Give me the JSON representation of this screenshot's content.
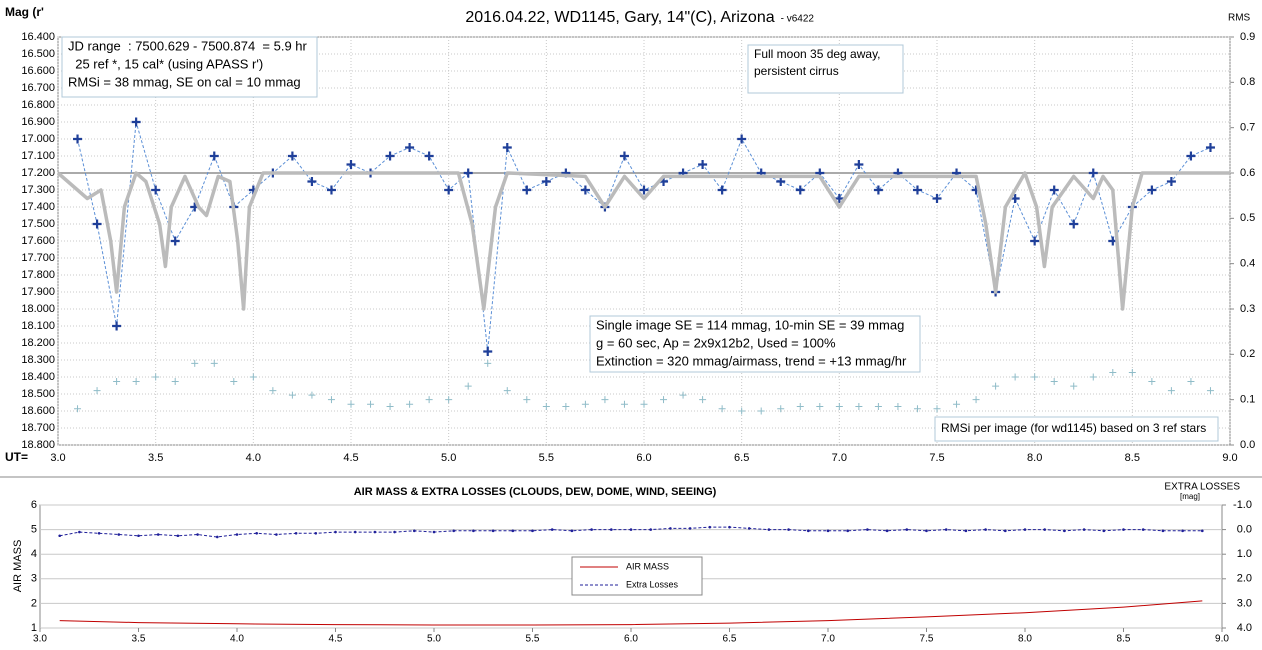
{
  "chart_data": [
    {
      "type": "line",
      "title": "2016.04.22,  WD1145, Gary, 14\"(C), Arizona",
      "subtitle": "- v6422",
      "ylabel": "Mag (r'",
      "y2label": "RMS",
      "xlabel": "UT=",
      "xlim": [
        3,
        9
      ],
      "xticks": [
        {
          "value": 3,
          "label": "3.0"
        },
        3.5,
        {
          "value": 4,
          "label": "4.0"
        },
        4.5,
        {
          "value": 5,
          "label": "5.0"
        },
        5.5,
        {
          "value": 6,
          "label": "6.0"
        },
        6.5,
        {
          "value": 7,
          "label": "7.0"
        },
        7.5,
        {
          "value": 8,
          "label": "8.0"
        },
        8.5,
        {
          "value": 9,
          "label": "9.0"
        }
      ],
      "ylim": [
        18.8,
        16.4
      ],
      "yticks": [
        {
          "value": 16.4,
          "label": "16.400"
        },
        {
          "value": 16.5,
          "label": "16.500"
        },
        {
          "value": 16.6,
          "label": "16.600"
        },
        {
          "value": 16.7,
          "label": "16.700"
        },
        {
          "value": 16.8,
          "label": "16.800"
        },
        {
          "value": 16.9,
          "label": "16.900"
        },
        {
          "value": 17.0,
          "label": "17.000"
        },
        {
          "value": 17.1,
          "label": "17.100"
        },
        {
          "value": 17.2,
          "label": "17.200"
        },
        {
          "value": 17.3,
          "label": "17.300"
        },
        {
          "value": 17.4,
          "label": "17.400"
        },
        {
          "value": 17.5,
          "label": "17.500"
        },
        {
          "value": 17.6,
          "label": "17.600"
        },
        {
          "value": 17.7,
          "label": "17.700"
        },
        {
          "value": 17.8,
          "label": "17.800"
        },
        {
          "value": 17.9,
          "label": "17.900"
        },
        {
          "value": 18.0,
          "label": "18.000"
        },
        {
          "value": 18.1,
          "label": "18.100"
        },
        {
          "value": 18.2,
          "label": "18.200"
        },
        {
          "value": 18.3,
          "label": "18.300"
        },
        {
          "value": 18.4,
          "label": "18.400"
        },
        {
          "value": 18.5,
          "label": "18.500"
        },
        {
          "value": 18.6,
          "label": "18.600"
        },
        {
          "value": 18.7,
          "label": "18.700"
        },
        {
          "value": 18.8,
          "label": "18.800"
        }
      ],
      "y2lim": [
        0,
        0.9
      ],
      "y2ticks": [
        {
          "value": 0,
          "label": "0.0"
        },
        0.1,
        0.2,
        0.3,
        0.4,
        0.5,
        0.6,
        0.7,
        0.8,
        0.9
      ],
      "grid": true,
      "hline": 17.2,
      "hline_color": "#aaaaaa",
      "series": [
        {
          "color": "#1f3f99",
          "line_color": "#5b8fd6",
          "marker": "plus",
          "line": "dashed",
          "x": [
            3.1,
            3.2,
            3.3,
            3.4,
            3.5,
            3.6,
            3.7,
            3.8,
            3.9,
            4.0,
            4.1,
            4.2,
            4.3,
            4.4,
            4.5,
            4.6,
            4.7,
            4.8,
            4.9,
            5.0,
            5.1,
            5.2,
            5.3,
            5.4,
            5.5,
            5.6,
            5.7,
            5.8,
            5.9,
            6.0,
            6.1,
            6.2,
            6.3,
            6.4,
            6.5,
            6.6,
            6.7,
            6.8,
            6.9,
            7.0,
            7.1,
            7.2,
            7.3,
            7.4,
            7.5,
            7.6,
            7.7,
            7.8,
            7.9,
            8.0,
            8.1,
            8.2,
            8.3,
            8.4,
            8.5,
            8.6,
            8.7,
            8.8,
            8.9
          ],
          "values": [
            17.0,
            17.5,
            18.1,
            16.9,
            17.3,
            17.6,
            17.4,
            17.1,
            17.4,
            17.3,
            17.2,
            17.1,
            17.25,
            17.3,
            17.15,
            17.2,
            17.1,
            17.05,
            17.1,
            17.3,
            17.2,
            18.25,
            17.05,
            17.3,
            17.25,
            17.2,
            17.3,
            17.4,
            17.1,
            17.3,
            17.25,
            17.2,
            17.15,
            17.3,
            17.0,
            17.2,
            17.25,
            17.3,
            17.2,
            17.35,
            17.15,
            17.3,
            17.2,
            17.3,
            17.35,
            17.2,
            17.3,
            17.9,
            17.35,
            17.6,
            17.3,
            17.5,
            17.2,
            17.6,
            17.4,
            17.3,
            17.25,
            17.1,
            17.05
          ]
        },
        {
          "color": "#bbbbbb",
          "line": "solid",
          "x": [
            3.0,
            3.15,
            3.22,
            3.27,
            3.3,
            3.34,
            3.4,
            3.45,
            3.52,
            3.55,
            3.58,
            3.65,
            3.72,
            3.76,
            3.82,
            3.88,
            3.92,
            3.95,
            3.98,
            4.05,
            5.05,
            5.12,
            5.18,
            5.24,
            5.3,
            5.7,
            5.8,
            5.9,
            6.0,
            6.1,
            6.9,
            7.0,
            7.1,
            7.7,
            7.75,
            7.8,
            7.85,
            7.95,
            8.01,
            8.05,
            8.09,
            8.2,
            8.3,
            8.35,
            8.4,
            8.45,
            8.5,
            8.55,
            9.0
          ],
          "values": [
            17.2,
            17.35,
            17.3,
            17.6,
            17.9,
            17.4,
            17.2,
            17.25,
            17.5,
            17.75,
            17.4,
            17.22,
            17.4,
            17.45,
            17.22,
            17.25,
            17.6,
            18.0,
            17.4,
            17.2,
            17.2,
            17.5,
            18.0,
            17.4,
            17.2,
            17.22,
            17.4,
            17.22,
            17.35,
            17.22,
            17.22,
            17.4,
            17.22,
            17.22,
            17.5,
            17.9,
            17.4,
            17.2,
            17.4,
            17.75,
            17.4,
            17.22,
            17.35,
            17.22,
            17.3,
            18.0,
            17.4,
            17.2,
            17.2
          ]
        },
        {
          "color": "#8fbcc8",
          "marker": "plus",
          "axis": "y2",
          "x": [
            3.1,
            3.2,
            3.3,
            3.4,
            3.5,
            3.6,
            3.7,
            3.8,
            3.9,
            4.0,
            4.1,
            4.2,
            4.3,
            4.4,
            4.5,
            4.6,
            4.7,
            4.8,
            4.9,
            5.0,
            5.1,
            5.2,
            5.3,
            5.4,
            5.5,
            5.6,
            5.7,
            5.8,
            5.9,
            6.0,
            6.1,
            6.2,
            6.3,
            6.4,
            6.5,
            6.6,
            6.7,
            6.8,
            6.9,
            7.0,
            7.1,
            7.2,
            7.3,
            7.4,
            7.5,
            7.6,
            7.7,
            7.8,
            7.9,
            8.0,
            8.1,
            8.2,
            8.3,
            8.4,
            8.5,
            8.6,
            8.7,
            8.8,
            8.9
          ],
          "values": [
            0.08,
            0.12,
            0.14,
            0.14,
            0.15,
            0.14,
            0.18,
            0.18,
            0.14,
            0.15,
            0.12,
            0.11,
            0.11,
            0.1,
            0.09,
            0.09,
            0.085,
            0.09,
            0.1,
            0.1,
            0.13,
            0.18,
            0.12,
            0.1,
            0.085,
            0.085,
            0.09,
            0.1,
            0.09,
            0.09,
            0.1,
            0.11,
            0.1,
            0.08,
            0.075,
            0.075,
            0.08,
            0.085,
            0.085,
            0.085,
            0.085,
            0.085,
            0.085,
            0.08,
            0.08,
            0.09,
            0.1,
            0.13,
            0.15,
            0.15,
            0.14,
            0.13,
            0.15,
            0.16,
            0.16,
            0.14,
            0.12,
            0.14,
            0.12
          ]
        }
      ],
      "annotations": [
        [
          "JD range  : 7500.629 - 7500.874  = 5.9 hr",
          "  25 ref *, 15 cal* (using APASS r')",
          "RMSi = 38 mmag, SE on cal = 10 mmag"
        ],
        [
          "Full moon 35 deg away,",
          "persistent cirrus"
        ],
        [
          "Single image SE = 114 mmag, 10-min SE = 39 mmag",
          "g = 60 sec, Ap = 2x9x12b2, Used = 100%",
          "Extinction = 320 mmag/airmass, trend = +13 mmag/hr"
        ],
        [
          "RMSi per image (for wd1145) based on 3 ref stars"
        ]
      ]
    },
    {
      "type": "line",
      "title": "AIR MASS & EXTRA LOSSES (CLOUDS, DEW, DOME, WIND, SEEING)",
      "ylabel": "AIR MASS",
      "y2label": [
        "EXTRA LOSSES",
        "[mag]"
      ],
      "xlim": [
        3,
        9
      ],
      "xticks": [
        {
          "value": 3,
          "label": "3.0"
        },
        3.5,
        {
          "value": 4,
          "label": "4.0"
        },
        4.5,
        {
          "value": 5,
          "label": "5.0"
        },
        5.5,
        {
          "value": 6,
          "label": "6.0"
        },
        6.5,
        {
          "value": 7,
          "label": "7.0"
        },
        7.5,
        {
          "value": 8,
          "label": "8.0"
        },
        8.5,
        {
          "value": 9,
          "label": "9.0"
        }
      ],
      "ylim": [
        1,
        6
      ],
      "yticks": [
        1,
        2,
        3,
        4,
        5,
        6
      ],
      "y2lim": [
        4,
        -1
      ],
      "y2ticks": [
        {
          "value": -1,
          "label": "-1.0"
        },
        {
          "value": 0,
          "label": "0.0"
        },
        {
          "value": 1,
          "label": "1.0"
        },
        {
          "value": 2,
          "label": "2.0"
        },
        {
          "value": 3,
          "label": "3.0"
        },
        {
          "value": 4,
          "label": "4.0"
        }
      ],
      "grid": true,
      "series": [
        {
          "name": "AIR MASS",
          "color": "#c00000",
          "line": "solid",
          "x": [
            3.1,
            3.5,
            4.0,
            4.5,
            5.0,
            5.5,
            6.0,
            6.5,
            7.0,
            7.5,
            8.0,
            8.5,
            8.9
          ],
          "values": [
            1.3,
            1.22,
            1.17,
            1.14,
            1.12,
            1.12,
            1.14,
            1.2,
            1.3,
            1.45,
            1.62,
            1.85,
            2.1
          ]
        },
        {
          "name": "Extra Losses",
          "color": "#1f1f99",
          "line": "dashed",
          "marker": "dot",
          "axis": "y2",
          "x": [
            3.1,
            3.2,
            3.3,
            3.4,
            3.5,
            3.6,
            3.7,
            3.8,
            3.9,
            4.0,
            4.1,
            4.2,
            4.3,
            4.4,
            4.5,
            4.6,
            4.7,
            4.8,
            4.9,
            5.0,
            5.1,
            5.2,
            5.3,
            5.4,
            5.5,
            5.6,
            5.7,
            5.8,
            5.9,
            6.0,
            6.1,
            6.2,
            6.3,
            6.4,
            6.5,
            6.6,
            6.7,
            6.8,
            6.9,
            7.0,
            7.1,
            7.2,
            7.3,
            7.4,
            7.5,
            7.6,
            7.7,
            7.8,
            7.9,
            8.0,
            8.1,
            8.2,
            8.3,
            8.4,
            8.5,
            8.6,
            8.7,
            8.8,
            8.9
          ],
          "values": [
            0.25,
            0.1,
            0.15,
            0.2,
            0.25,
            0.2,
            0.25,
            0.2,
            0.3,
            0.2,
            0.15,
            0.2,
            0.15,
            0.15,
            0.1,
            0.1,
            0.1,
            0.1,
            0.05,
            0.1,
            0.05,
            0.05,
            0.05,
            0.05,
            0.05,
            0,
            0.05,
            0,
            0,
            0,
            0,
            -0.05,
            -0.05,
            -0.1,
            -0.1,
            -0.05,
            0,
            0,
            0.05,
            0.05,
            0.05,
            0,
            0.05,
            0,
            0.05,
            0,
            0.05,
            0,
            0.05,
            0,
            0,
            0.05,
            0,
            0.05,
            0,
            0,
            0.05,
            0.05,
            0.05
          ]
        }
      ]
    }
  ]
}
